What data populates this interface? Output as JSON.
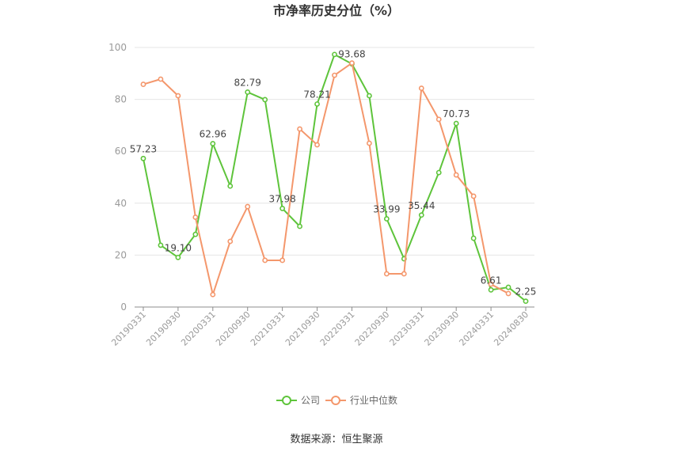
{
  "chart_data": {
    "type": "line",
    "title": "市净率历史分位（%）",
    "categories": [
      "20190331",
      "",
      "20190930",
      "",
      "20200331",
      "",
      "20200930",
      "",
      "20210331",
      "",
      "20210930",
      "",
      "20220331",
      "",
      "20220930",
      "",
      "20230331",
      "",
      "20230930",
      "",
      "20240331",
      "",
      "20240830"
    ],
    "yticks": [
      0,
      20,
      40,
      60,
      80,
      100
    ],
    "ylim": [
      0,
      100
    ],
    "grid": true,
    "legend_position": "bottom",
    "series": [
      {
        "name": "公司",
        "color": "#5ec43b",
        "values": [
          57.23,
          23.8,
          19.1,
          28.0,
          62.96,
          46.6,
          82.79,
          79.9,
          37.98,
          31.1,
          78.21,
          97.3,
          93.68,
          81.4,
          33.99,
          18.6,
          35.44,
          51.8,
          70.73,
          26.5,
          6.61,
          7.6,
          2.25
        ],
        "data_labels": [
          "57.23",
          "",
          "19.10",
          "",
          "62.96",
          "",
          "82.79",
          "",
          "37.98",
          "",
          "78.21",
          "",
          "93.68",
          "",
          "33.99",
          "",
          "35.44",
          "",
          "70.73",
          "",
          "6.61",
          "",
          "2.25"
        ]
      },
      {
        "name": "行业中位数",
        "color": "#f4976c",
        "values": [
          85.8,
          87.8,
          81.4,
          34.6,
          4.8,
          25.3,
          38.7,
          18.0,
          18.0,
          68.6,
          62.5,
          89.3,
          94.0,
          63.1,
          12.8,
          12.8,
          84.3,
          72.3,
          50.9,
          42.7,
          8.8,
          5.2,
          null
        ]
      }
    ]
  },
  "source": "数据来源：恒生聚源"
}
